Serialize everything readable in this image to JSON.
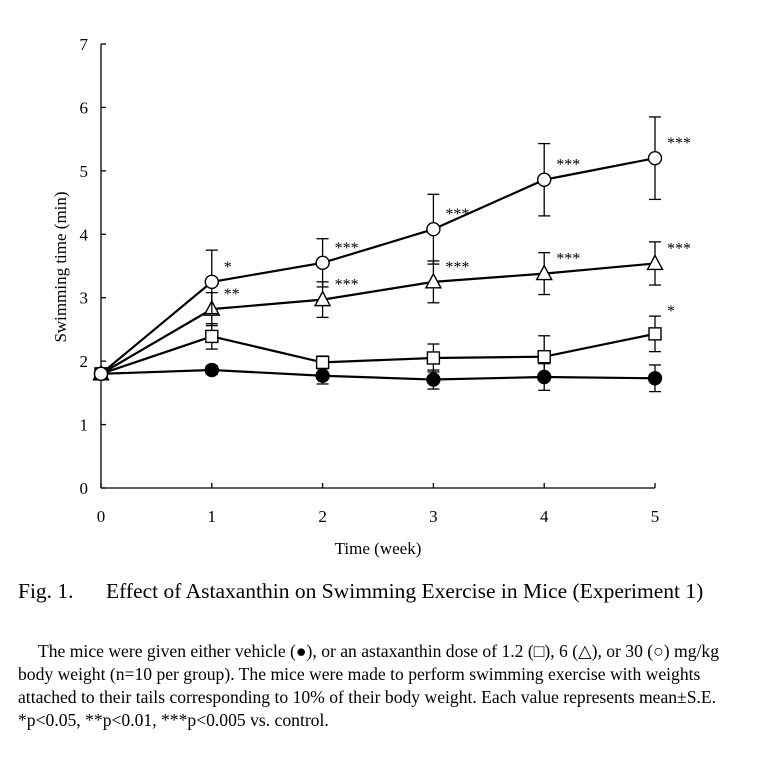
{
  "chart_data": {
    "type": "line",
    "xlabel": "Time (week)",
    "ylabel": "Swimming time (min)",
    "x": [
      0,
      1,
      2,
      3,
      4,
      5
    ],
    "xlim": [
      0,
      5
    ],
    "ylim": [
      0,
      7
    ],
    "xticks": [
      "0",
      "1",
      "2",
      "3",
      "4",
      "5"
    ],
    "yticks": [
      "0",
      "1",
      "2",
      "3",
      "4",
      "5",
      "6",
      "7"
    ],
    "grid": false,
    "series": [
      {
        "marker": "circle-filled",
        "values": [
          1.8,
          1.86,
          1.77,
          1.71,
          1.75,
          1.73
        ],
        "errors": [
          0.08,
          0.07,
          0.13,
          0.15,
          0.21,
          0.21
        ],
        "significance": [
          "",
          "",
          "",
          "",
          "",
          ""
        ]
      },
      {
        "marker": "square-open",
        "values": [
          1.8,
          2.39,
          1.98,
          2.05,
          2.07,
          2.43
        ],
        "errors": [
          0.08,
          0.2,
          0.1,
          0.22,
          0.33,
          0.28
        ],
        "significance": [
          "",
          "",
          "",
          "",
          "",
          "*"
        ]
      },
      {
        "marker": "triangle-open",
        "values": [
          1.8,
          2.82,
          2.97,
          3.25,
          3.38,
          3.54
        ],
        "errors": [
          0.08,
          0.26,
          0.28,
          0.33,
          0.33,
          0.34
        ],
        "significance": [
          "",
          "**",
          "***",
          "***",
          "***",
          "***"
        ]
      },
      {
        "marker": "circle-open",
        "values": [
          1.8,
          3.25,
          3.55,
          4.08,
          4.86,
          5.2
        ],
        "errors": [
          0.08,
          0.5,
          0.38,
          0.55,
          0.57,
          0.65
        ],
        "significance": [
          "",
          "*",
          "***",
          "***",
          "***",
          "***"
        ]
      }
    ]
  },
  "caption": {
    "label": "Fig. 1.",
    "title": "Effect of Astaxanthin on Swimming Exercise in Mice (Experiment 1)",
    "body": "The mice were given either vehicle (●), or an astaxanthin dose of 1.2 (□), 6 (△), or 30 (○) mg/kg body weight (n=10 per group). The mice were made to perform swimming exercise with weights attached to their tails corresponding to 10% of their body weight. Each value represents mean±S.E. *p<0.05, **p<0.01, ***p<0.005 vs. control."
  }
}
